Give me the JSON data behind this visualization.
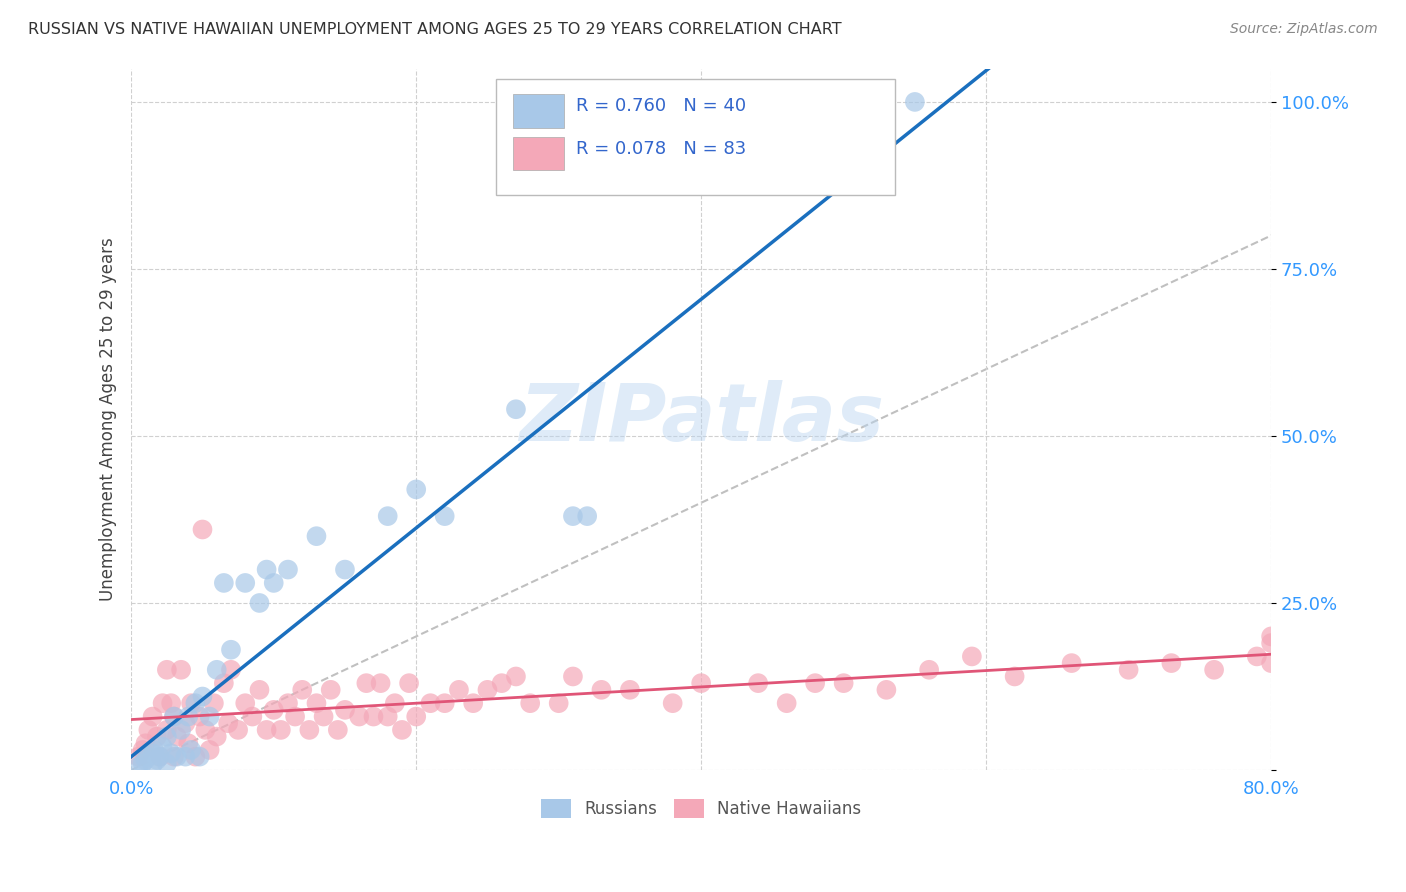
{
  "title": "RUSSIAN VS NATIVE HAWAIIAN UNEMPLOYMENT AMONG AGES 25 TO 29 YEARS CORRELATION CHART",
  "source": "Source: ZipAtlas.com",
  "ylabel": "Unemployment Among Ages 25 to 29 years",
  "xlim": [
    0.0,
    0.8
  ],
  "ylim": [
    0.0,
    1.05
  ],
  "x_ticks": [
    0.0,
    0.2,
    0.4,
    0.6,
    0.8
  ],
  "x_tick_labels": [
    "0.0%",
    "",
    "",
    "",
    "80.0%"
  ],
  "y_ticks": [
    0.0,
    0.25,
    0.5,
    0.75,
    1.0
  ],
  "y_tick_labels": [
    "",
    "25.0%",
    "50.0%",
    "75.0%",
    "100.0%"
  ],
  "russian_R": 0.76,
  "russian_N": 40,
  "hawaiian_R": 0.078,
  "hawaiian_N": 83,
  "russian_color": "#a8c8e8",
  "hawaiian_color": "#f4a8b8",
  "russian_line_color": "#1a6fbe",
  "hawaiian_line_color": "#e05577",
  "diagonal_color": "#c0c0c0",
  "background_color": "#ffffff",
  "watermark": "ZIPatlas",
  "russians_x": [
    0.005,
    0.008,
    0.01,
    0.012,
    0.015,
    0.015,
    0.016,
    0.018,
    0.02,
    0.022,
    0.025,
    0.025,
    0.028,
    0.03,
    0.032,
    0.035,
    0.038,
    0.04,
    0.042,
    0.045,
    0.048,
    0.05,
    0.055,
    0.06,
    0.065,
    0.07,
    0.08,
    0.09,
    0.095,
    0.1,
    0.11,
    0.13,
    0.15,
    0.18,
    0.2,
    0.22,
    0.27,
    0.31,
    0.32,
    0.55
  ],
  "russians_y": [
    0.005,
    0.01,
    0.015,
    0.02,
    0.008,
    0.025,
    0.03,
    0.015,
    0.02,
    0.035,
    0.01,
    0.05,
    0.025,
    0.08,
    0.02,
    0.06,
    0.02,
    0.08,
    0.03,
    0.1,
    0.02,
    0.11,
    0.08,
    0.15,
    0.28,
    0.18,
    0.28,
    0.25,
    0.3,
    0.28,
    0.3,
    0.35,
    0.3,
    0.38,
    0.42,
    0.38,
    0.54,
    0.38,
    0.38,
    1.0
  ],
  "hawaiians_x": [
    0.005,
    0.008,
    0.01,
    0.012,
    0.015,
    0.018,
    0.02,
    0.022,
    0.025,
    0.025,
    0.028,
    0.03,
    0.03,
    0.032,
    0.035,
    0.038,
    0.04,
    0.042,
    0.045,
    0.048,
    0.05,
    0.052,
    0.055,
    0.058,
    0.06,
    0.065,
    0.068,
    0.07,
    0.075,
    0.08,
    0.085,
    0.09,
    0.095,
    0.1,
    0.105,
    0.11,
    0.115,
    0.12,
    0.125,
    0.13,
    0.135,
    0.14,
    0.145,
    0.15,
    0.16,
    0.165,
    0.17,
    0.175,
    0.18,
    0.185,
    0.19,
    0.195,
    0.2,
    0.21,
    0.22,
    0.23,
    0.24,
    0.25,
    0.26,
    0.27,
    0.28,
    0.3,
    0.31,
    0.33,
    0.35,
    0.38,
    0.4,
    0.44,
    0.46,
    0.48,
    0.5,
    0.53,
    0.56,
    0.59,
    0.62,
    0.66,
    0.7,
    0.73,
    0.76,
    0.79,
    0.8,
    0.8,
    0.8
  ],
  "hawaiians_y": [
    0.02,
    0.03,
    0.04,
    0.06,
    0.08,
    0.05,
    0.02,
    0.1,
    0.06,
    0.15,
    0.1,
    0.02,
    0.08,
    0.05,
    0.15,
    0.07,
    0.04,
    0.1,
    0.02,
    0.08,
    0.36,
    0.06,
    0.03,
    0.1,
    0.05,
    0.13,
    0.07,
    0.15,
    0.06,
    0.1,
    0.08,
    0.12,
    0.06,
    0.09,
    0.06,
    0.1,
    0.08,
    0.12,
    0.06,
    0.1,
    0.08,
    0.12,
    0.06,
    0.09,
    0.08,
    0.13,
    0.08,
    0.13,
    0.08,
    0.1,
    0.06,
    0.13,
    0.08,
    0.1,
    0.1,
    0.12,
    0.1,
    0.12,
    0.13,
    0.14,
    0.1,
    0.1,
    0.14,
    0.12,
    0.12,
    0.1,
    0.13,
    0.13,
    0.1,
    0.13,
    0.13,
    0.12,
    0.15,
    0.17,
    0.14,
    0.16,
    0.15,
    0.16,
    0.15,
    0.17,
    0.16,
    0.2,
    0.19
  ]
}
